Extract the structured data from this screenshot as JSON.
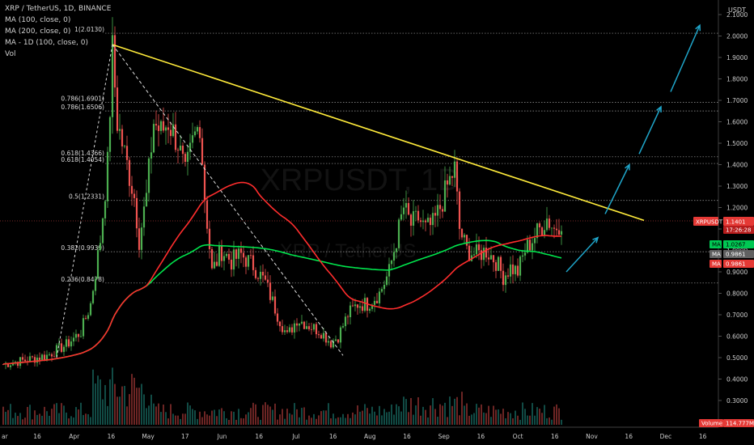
{
  "legend": {
    "symbol": "XRP / TetherUS, 1D, BINANCE",
    "ma1": "MA (100, close, 0)",
    "ma2": "MA (200, close, 0)",
    "ma3": "MA - 1D (100, close, 0)",
    "vol": "Vol"
  },
  "axis_unit": "USDT",
  "watermark": {
    "main": "XRPUSDT, 1D",
    "sub": "XRP / TetherUS"
  },
  "badges": {
    "symbol_label": "XRPUSDT",
    "price": "1.1401",
    "countdown": "17:26:28",
    "ma1_label": "MA",
    "ma1_value": "1.0267",
    "ma2_label": "MA",
    "ma2_value": "0.9861",
    "ma3_label": "MA",
    "ma3_value": "0.9861",
    "volume_label": "Volume",
    "volume_value": "114.777M"
  },
  "colors": {
    "background": "#000000",
    "up": "#26a69a",
    "up_alt": "#4caf50",
    "down": "#ef5350",
    "ma_green": "#00e64d",
    "ma_red": "#ff2d2d",
    "trendline": "#ffeb3b",
    "arrow": "#1fa5c9"
  },
  "chart_data": {
    "type": "candlestick",
    "y_axis": {
      "ticks": [
        "0.3000",
        "0.4000",
        "0.5000",
        "0.6000",
        "0.7000",
        "0.8000",
        "0.9000",
        "1.0000",
        "1.1000",
        "1.2000",
        "1.3000",
        "1.4000",
        "1.5000",
        "1.6000",
        "1.7000",
        "1.8000",
        "1.9000",
        "2.0000",
        "2.1000"
      ],
      "range": [
        0.25,
        2.12
      ]
    },
    "x_axis": {
      "ticks": [
        "16",
        "Apr",
        "16",
        "May",
        "17",
        "Jun",
        "16",
        "Jul",
        "16",
        "Aug",
        "16",
        "Sep",
        "16",
        "Oct",
        "16",
        "Nov",
        "16",
        "Dec",
        "16"
      ],
      "first_label": "ar"
    },
    "fib_levels": [
      {
        "label": "1(2.0130)",
        "value": 2.013
      },
      {
        "label": "0.786(1.6901)",
        "value": 1.6901
      },
      {
        "label": "0.786(1.6506)",
        "value": 1.6506
      },
      {
        "label": "0.618(1.4366)",
        "value": 1.4366
      },
      {
        "label": "0.618(1.4054)",
        "value": 1.4054
      },
      {
        "label": "0.5(1.2331)",
        "value": 1.2331
      },
      {
        "label": "0.382(0.9939)",
        "value": 0.9939
      },
      {
        "label": "0.236(0.8478)",
        "value": 0.8478
      }
    ],
    "last_price": 1.1401,
    "price_anchors": [
      {
        "day": 0,
        "value": 0.47
      },
      {
        "day": 10,
        "value": 0.49
      },
      {
        "day": 18,
        "value": 0.51
      },
      {
        "day": 26,
        "value": 0.56
      },
      {
        "day": 32,
        "value": 0.62
      },
      {
        "day": 36,
        "value": 0.75
      },
      {
        "day": 40,
        "value": 1.05
      },
      {
        "day": 43,
        "value": 1.4
      },
      {
        "day": 45,
        "value": 1.93
      },
      {
        "day": 47,
        "value": 1.6
      },
      {
        "day": 50,
        "value": 1.45
      },
      {
        "day": 54,
        "value": 1.25
      },
      {
        "day": 56,
        "value": 1.05
      },
      {
        "day": 59,
        "value": 1.25
      },
      {
        "day": 62,
        "value": 1.6
      },
      {
        "day": 65,
        "value": 1.55
      },
      {
        "day": 68,
        "value": 1.6
      },
      {
        "day": 72,
        "value": 1.5
      },
      {
        "day": 75,
        "value": 1.35
      },
      {
        "day": 78,
        "value": 1.5
      },
      {
        "day": 81,
        "value": 1.6
      },
      {
        "day": 83,
        "value": 1.25
      },
      {
        "day": 86,
        "value": 0.9
      },
      {
        "day": 90,
        "value": 1.0
      },
      {
        "day": 94,
        "value": 0.95
      },
      {
        "day": 98,
        "value": 0.98
      },
      {
        "day": 103,
        "value": 0.93
      },
      {
        "day": 108,
        "value": 0.85
      },
      {
        "day": 113,
        "value": 0.7
      },
      {
        "day": 117,
        "value": 0.6
      },
      {
        "day": 121,
        "value": 0.68
      },
      {
        "day": 126,
        "value": 0.65
      },
      {
        "day": 131,
        "value": 0.62
      },
      {
        "day": 135,
        "value": 0.57
      },
      {
        "day": 138,
        "value": 0.6
      },
      {
        "day": 142,
        "value": 0.7
      },
      {
        "day": 146,
        "value": 0.75
      },
      {
        "day": 150,
        "value": 0.75
      },
      {
        "day": 155,
        "value": 0.8
      },
      {
        "day": 159,
        "value": 0.9
      },
      {
        "day": 162,
        "value": 1.05
      },
      {
        "day": 165,
        "value": 1.2
      },
      {
        "day": 168,
        "value": 1.12
      },
      {
        "day": 171,
        "value": 1.15
      },
      {
        "day": 174,
        "value": 1.1
      },
      {
        "day": 177,
        "value": 1.12
      },
      {
        "day": 180,
        "value": 1.2
      },
      {
        "day": 183,
        "value": 1.3
      },
      {
        "day": 186,
        "value": 1.38
      },
      {
        "day": 188,
        "value": 1.1
      },
      {
        "day": 191,
        "value": 1.0
      },
      {
        "day": 195,
        "value": 0.98
      },
      {
        "day": 199,
        "value": 1.0
      },
      {
        "day": 203,
        "value": 0.95
      },
      {
        "day": 206,
        "value": 0.88
      },
      {
        "day": 209,
        "value": 0.92
      },
      {
        "day": 212,
        "value": 0.9
      },
      {
        "day": 215,
        "value": 1.0
      },
      {
        "day": 218,
        "value": 1.05
      },
      {
        "day": 221,
        "value": 1.1
      },
      {
        "day": 224,
        "value": 1.15
      },
      {
        "day": 227,
        "value": 1.1
      },
      {
        "day": 230,
        "value": 1.14
      }
    ],
    "trendline": {
      "from": {
        "day": 45,
        "value": 1.96
      },
      "to": {
        "day": 264,
        "value": 1.14
      }
    },
    "diagonal": {
      "from": {
        "day": 45,
        "value": 1.96
      },
      "to": {
        "day": 140,
        "value": 0.51
      }
    }
  }
}
